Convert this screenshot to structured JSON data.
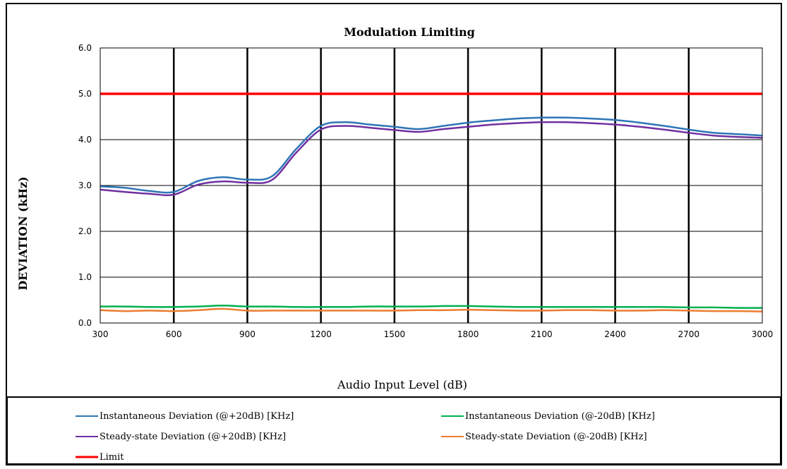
{
  "chart_data": {
    "type": "line",
    "title": "Modulation Limiting",
    "xlabel": "Audio Input Level (dB)",
    "ylabel": "DEVIATION (kHz)",
    "xlim": [
      300,
      3000
    ],
    "ylim": [
      0.0,
      6.0
    ],
    "x_ticks": [
      "300",
      "600",
      "900",
      "1200",
      "1500",
      "1800",
      "2100",
      "2400",
      "2700",
      "3000"
    ],
    "y_ticks": [
      "0.0",
      "1.0",
      "2.0",
      "3.0",
      "4.0",
      "5.0",
      "6.0"
    ],
    "grid": true,
    "legend_position": "bottom",
    "series": [
      {
        "name": "Instantaneous Deviation (@+20dB) [KHz]",
        "color": "#2e75b6",
        "x": [
          300,
          400,
          500,
          600,
          700,
          800,
          900,
          1000,
          1100,
          1200,
          1300,
          1400,
          1500,
          1600,
          1700,
          1800,
          1900,
          2000,
          2100,
          2200,
          2300,
          2400,
          2500,
          2600,
          2700,
          2800,
          2900,
          3000
        ],
        "y": [
          2.98,
          2.95,
          2.88,
          2.86,
          3.1,
          3.18,
          3.13,
          3.2,
          3.8,
          4.3,
          4.38,
          4.33,
          4.28,
          4.23,
          4.3,
          4.37,
          4.42,
          4.46,
          4.48,
          4.48,
          4.46,
          4.43,
          4.37,
          4.3,
          4.22,
          4.15,
          4.12,
          4.09
        ]
      },
      {
        "name": "Instantaneous Deviation (@-20dB) [KHz]",
        "color": "#00b050",
        "x": [
          300,
          400,
          500,
          600,
          700,
          800,
          900,
          1000,
          1100,
          1200,
          1300,
          1400,
          1500,
          1600,
          1700,
          1800,
          1900,
          2000,
          2100,
          2200,
          2300,
          2400,
          2500,
          2600,
          2700,
          2800,
          2900,
          3000
        ],
        "y": [
          0.36,
          0.36,
          0.35,
          0.35,
          0.36,
          0.38,
          0.36,
          0.36,
          0.35,
          0.35,
          0.35,
          0.36,
          0.36,
          0.36,
          0.37,
          0.37,
          0.36,
          0.35,
          0.35,
          0.35,
          0.35,
          0.35,
          0.35,
          0.35,
          0.34,
          0.34,
          0.33,
          0.33
        ]
      },
      {
        "name": "Steady-state Deviation (@+20dB) [KHz]",
        "color": "#7030a0",
        "x": [
          300,
          400,
          500,
          600,
          700,
          800,
          900,
          1000,
          1100,
          1200,
          1300,
          1400,
          1500,
          1600,
          1700,
          1800,
          1900,
          2000,
          2100,
          2200,
          2300,
          2400,
          2500,
          2600,
          2700,
          2800,
          2900,
          3000
        ],
        "y": [
          2.91,
          2.86,
          2.82,
          2.8,
          3.02,
          3.09,
          3.06,
          3.12,
          3.72,
          4.22,
          4.3,
          4.26,
          4.21,
          4.17,
          4.23,
          4.28,
          4.33,
          4.36,
          4.38,
          4.38,
          4.36,
          4.33,
          4.28,
          4.22,
          4.15,
          4.09,
          4.06,
          4.04
        ]
      },
      {
        "name": "Steady-state Deviation (@-20dB) [KHz]",
        "color": "#ed7d31",
        "x": [
          300,
          400,
          500,
          600,
          700,
          800,
          900,
          1000,
          1100,
          1200,
          1300,
          1400,
          1500,
          1600,
          1700,
          1800,
          1900,
          2000,
          2100,
          2200,
          2300,
          2400,
          2500,
          2600,
          2700,
          2800,
          2900,
          3000
        ],
        "y": [
          0.28,
          0.26,
          0.27,
          0.26,
          0.28,
          0.31,
          0.27,
          0.27,
          0.27,
          0.27,
          0.27,
          0.27,
          0.27,
          0.28,
          0.28,
          0.29,
          0.28,
          0.27,
          0.27,
          0.28,
          0.28,
          0.27,
          0.27,
          0.28,
          0.27,
          0.26,
          0.26,
          0.25
        ]
      },
      {
        "name": "Limit",
        "color": "#ff0000",
        "x": [
          300,
          3000
        ],
        "y": [
          5.0,
          5.0
        ]
      }
    ]
  }
}
